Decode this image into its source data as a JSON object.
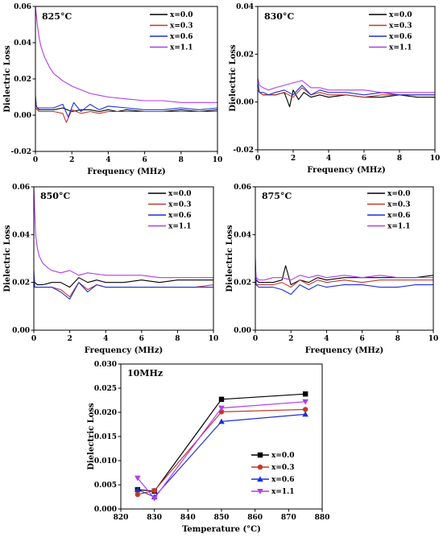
{
  "chart_data": [
    {
      "type": "line",
      "title": "825°C",
      "xlabel": "Frequency (MHz)",
      "ylabel": "Dielectric Loss",
      "xlim": [
        0,
        10
      ],
      "ylim": [
        -0.02,
        0.06
      ],
      "xticks": [
        "0",
        "2",
        "4",
        "6",
        "8",
        "10"
      ],
      "yticks": [
        "-0.02",
        "0.00",
        "0.02",
        "0.04",
        "0.06"
      ],
      "legend_position": "top-right",
      "series": [
        {
          "name": "x=0.0",
          "color": "#000000",
          "x": [
            0,
            0.1,
            0.2,
            0.5,
            1.0,
            1.5,
            2.0,
            2.5,
            3.0,
            3.5,
            4.0,
            4.5,
            5.0,
            6.0,
            7.0,
            8.0,
            9.0,
            10.0
          ],
          "values": [
            0.006,
            0.004,
            0.003,
            0.003,
            0.003,
            0.004,
            0.002,
            0.003,
            0.003,
            0.002,
            0.003,
            0.002,
            0.003,
            0.002,
            0.002,
            0.003,
            0.002,
            0.003
          ]
        },
        {
          "name": "x=0.3",
          "color": "#c0392b",
          "x": [
            0,
            0.1,
            0.2,
            0.5,
            1.0,
            1.5,
            1.7,
            2.0,
            2.5,
            3.0,
            3.5,
            4.0,
            5.0,
            6.0,
            7.0,
            8.0,
            9.0,
            10.0
          ],
          "values": [
            0.004,
            0.003,
            0.002,
            0.002,
            0.002,
            0.001,
            -0.004,
            0.003,
            0.001,
            0.002,
            0.001,
            0.002,
            0.002,
            0.002,
            0.002,
            0.002,
            0.002,
            0.002
          ]
        },
        {
          "name": "x=0.6",
          "color": "#1f2fd6",
          "x": [
            0,
            0.05,
            0.1,
            0.3,
            0.6,
            1.0,
            1.5,
            1.8,
            2.1,
            2.5,
            3.0,
            3.5,
            4.0,
            5.0,
            6.0,
            7.0,
            8.0,
            9.0,
            10.0
          ],
          "values": [
            0.011,
            0.005,
            0.004,
            0.004,
            0.004,
            0.004,
            0.006,
            -0.001,
            0.007,
            0.002,
            0.006,
            0.003,
            0.005,
            0.004,
            0.003,
            0.003,
            0.004,
            0.003,
            0.004
          ]
        },
        {
          "name": "x=1.1",
          "color": "#b23ce8",
          "x": [
            0,
            0.1,
            0.2,
            0.3,
            0.5,
            0.8,
            1.0,
            1.5,
            2.0,
            2.5,
            3.0,
            3.5,
            4.0,
            5.0,
            6.0,
            7.0,
            8.0,
            9.0,
            10.0
          ],
          "values": [
            0.06,
            0.05,
            0.043,
            0.038,
            0.032,
            0.026,
            0.023,
            0.019,
            0.016,
            0.014,
            0.012,
            0.011,
            0.01,
            0.009,
            0.008,
            0.008,
            0.007,
            0.007,
            0.007
          ]
        }
      ]
    },
    {
      "type": "line",
      "title": "830°C",
      "xlabel": "Frequency (MHz)",
      "ylabel": "Dielectric Loss",
      "xlim": [
        0,
        10
      ],
      "ylim": [
        -0.02,
        0.04
      ],
      "xticks": [
        "0",
        "2",
        "4",
        "6",
        "8",
        "10"
      ],
      "yticks": [
        "-0.02",
        "0.00",
        "0.02",
        "0.04"
      ],
      "legend_position": "top-right",
      "series": [
        {
          "name": "x=0.0",
          "color": "#000000",
          "x": [
            0,
            0.1,
            0.3,
            0.6,
            1.0,
            1.5,
            1.8,
            2.0,
            2.3,
            2.6,
            3.0,
            3.5,
            4.0,
            5.0,
            6.0,
            7.0,
            8.0,
            9.0,
            10.0
          ],
          "values": [
            0.005,
            0.004,
            0.003,
            0.003,
            0.003,
            0.004,
            -0.002,
            0.005,
            0.001,
            0.004,
            0.002,
            0.003,
            0.002,
            0.003,
            0.002,
            0.002,
            0.003,
            0.002,
            0.002
          ]
        },
        {
          "name": "x=0.3",
          "color": "#c0392b",
          "x": [
            0,
            0.1,
            0.3,
            0.6,
            1.0,
            1.5,
            2.0,
            2.5,
            3.0,
            3.5,
            4.0,
            5.0,
            6.0,
            7.0,
            8.0,
            9.0,
            10.0
          ],
          "values": [
            0.005,
            0.004,
            0.003,
            0.003,
            0.003,
            0.004,
            0.002,
            0.006,
            0.003,
            0.004,
            0.003,
            0.003,
            0.002,
            0.003,
            0.003,
            0.003,
            0.003
          ]
        },
        {
          "name": "x=0.6",
          "color": "#1f2fd6",
          "x": [
            0,
            0.1,
            0.3,
            0.6,
            1.0,
            1.5,
            2.0,
            2.5,
            3.0,
            3.5,
            4.0,
            5.0,
            6.0,
            7.0,
            8.0,
            9.0,
            10.0
          ],
          "values": [
            0.008,
            0.004,
            0.004,
            0.003,
            0.004,
            0.005,
            0.003,
            0.007,
            0.003,
            0.005,
            0.004,
            0.004,
            0.003,
            0.004,
            0.003,
            0.003,
            0.003
          ]
        },
        {
          "name": "x=1.1",
          "color": "#b23ce8",
          "x": [
            0,
            0.1,
            0.3,
            0.6,
            1.0,
            1.5,
            2.0,
            2.5,
            3.0,
            3.5,
            4.0,
            5.0,
            6.0,
            7.0,
            8.0,
            9.0,
            10.0
          ],
          "values": [
            0.01,
            0.007,
            0.006,
            0.005,
            0.006,
            0.007,
            0.008,
            0.009,
            0.006,
            0.006,
            0.005,
            0.005,
            0.005,
            0.004,
            0.004,
            0.004,
            0.004
          ]
        }
      ]
    },
    {
      "type": "line",
      "title": "850°C",
      "xlabel": "Frequency (MHz)",
      "ylabel": "Dielectric Loss",
      "xlim": [
        0,
        10
      ],
      "ylim": [
        0,
        0.06
      ],
      "xticks": [
        "0",
        "2",
        "4",
        "6",
        "8",
        "10"
      ],
      "yticks": [
        "0.00",
        "0.02",
        "0.04",
        "0.06"
      ],
      "legend_position": "top-right",
      "series": [
        {
          "name": "x=0.0",
          "color": "#000000",
          "x": [
            0,
            0.05,
            0.2,
            0.5,
            1.0,
            1.5,
            2.0,
            2.5,
            3.0,
            3.5,
            4.0,
            5.0,
            6.0,
            7.0,
            8.0,
            9.0,
            10.0
          ],
          "values": [
            0.022,
            0.02,
            0.019,
            0.019,
            0.02,
            0.02,
            0.018,
            0.022,
            0.02,
            0.021,
            0.02,
            0.02,
            0.021,
            0.02,
            0.021,
            0.021,
            0.021
          ]
        },
        {
          "name": "x=0.3",
          "color": "#c0392b",
          "x": [
            0,
            0.05,
            0.2,
            0.5,
            1.0,
            1.5,
            2.0,
            2.5,
            3.0,
            3.5,
            4.0,
            5.0,
            6.0,
            7.0,
            8.0,
            9.0,
            10.0
          ],
          "values": [
            0.021,
            0.018,
            0.018,
            0.018,
            0.018,
            0.017,
            0.014,
            0.02,
            0.017,
            0.019,
            0.018,
            0.018,
            0.018,
            0.018,
            0.018,
            0.018,
            0.019
          ]
        },
        {
          "name": "x=0.6",
          "color": "#1f2fd6",
          "x": [
            0,
            0.05,
            0.2,
            0.5,
            1.0,
            1.5,
            2.0,
            2.5,
            3.0,
            3.5,
            4.0,
            5.0,
            6.0,
            7.0,
            8.0,
            9.0,
            10.0
          ],
          "values": [
            0.025,
            0.018,
            0.018,
            0.018,
            0.018,
            0.016,
            0.013,
            0.02,
            0.016,
            0.019,
            0.018,
            0.018,
            0.018,
            0.018,
            0.018,
            0.018,
            0.018
          ]
        },
        {
          "name": "x=1.1",
          "color": "#b23ce8",
          "x": [
            0,
            0.1,
            0.2,
            0.3,
            0.5,
            0.8,
            1.0,
            1.5,
            2.0,
            2.5,
            3.0,
            4.0,
            5.0,
            6.0,
            7.0,
            8.0,
            9.0,
            10.0
          ],
          "values": [
            0.06,
            0.04,
            0.034,
            0.031,
            0.028,
            0.026,
            0.025,
            0.024,
            0.025,
            0.023,
            0.024,
            0.023,
            0.023,
            0.023,
            0.022,
            0.022,
            0.022,
            0.022
          ]
        }
      ]
    },
    {
      "type": "line",
      "title": "875°C",
      "xlabel": "Frequency (MHz)",
      "ylabel": "Dielectric Loss",
      "xlim": [
        0,
        10
      ],
      "ylim": [
        0,
        0.06
      ],
      "xticks": [
        "0",
        "2",
        "4",
        "6",
        "8",
        "10"
      ],
      "yticks": [
        "0.00",
        "0.02",
        "0.04",
        "0.06"
      ],
      "legend_position": "top-right",
      "series": [
        {
          "name": "x=0.0",
          "color": "#000000",
          "x": [
            0,
            0.05,
            0.2,
            0.5,
            1.0,
            1.5,
            1.7,
            2.0,
            2.5,
            3.0,
            3.5,
            4.0,
            5.0,
            6.0,
            7.0,
            8.0,
            9.0,
            10.0
          ],
          "values": [
            0.024,
            0.021,
            0.02,
            0.02,
            0.02,
            0.021,
            0.027,
            0.019,
            0.021,
            0.02,
            0.022,
            0.021,
            0.022,
            0.022,
            0.022,
            0.022,
            0.022,
            0.023
          ]
        },
        {
          "name": "x=0.3",
          "color": "#c0392b",
          "x": [
            0,
            0.05,
            0.2,
            0.5,
            1.0,
            1.5,
            2.0,
            2.5,
            3.0,
            3.5,
            4.0,
            5.0,
            6.0,
            7.0,
            8.0,
            9.0,
            10.0
          ],
          "values": [
            0.023,
            0.019,
            0.019,
            0.019,
            0.019,
            0.02,
            0.018,
            0.021,
            0.019,
            0.021,
            0.02,
            0.021,
            0.02,
            0.021,
            0.021,
            0.021,
            0.021
          ]
        },
        {
          "name": "x=0.6",
          "color": "#1f2fd6",
          "x": [
            0,
            0.05,
            0.2,
            0.5,
            1.0,
            1.5,
            2.0,
            2.5,
            3.0,
            3.5,
            4.0,
            5.0,
            6.0,
            7.0,
            8.0,
            9.0,
            10.0
          ],
          "values": [
            0.03,
            0.019,
            0.018,
            0.018,
            0.018,
            0.017,
            0.015,
            0.019,
            0.017,
            0.019,
            0.018,
            0.019,
            0.019,
            0.018,
            0.018,
            0.019,
            0.019
          ]
        },
        {
          "name": "x=1.1",
          "color": "#b23ce8",
          "x": [
            0,
            0.05,
            0.2,
            0.5,
            1.0,
            1.5,
            2.0,
            2.5,
            3.0,
            3.5,
            4.0,
            5.0,
            6.0,
            7.0,
            8.0,
            9.0,
            10.0
          ],
          "values": [
            0.026,
            0.022,
            0.021,
            0.021,
            0.022,
            0.022,
            0.021,
            0.023,
            0.022,
            0.023,
            0.022,
            0.023,
            0.022,
            0.023,
            0.022,
            0.022,
            0.022
          ]
        }
      ]
    },
    {
      "type": "line",
      "title": "10MHz",
      "xlabel": "Temperature (°C)",
      "ylabel": "Dielectric Loss",
      "xlim": [
        820,
        880
      ],
      "ylim": [
        0,
        0.03
      ],
      "xticks": [
        "820",
        "830",
        "840",
        "850",
        "860",
        "870",
        "880"
      ],
      "yticks": [
        "0.000",
        "0.005",
        "0.010",
        "0.015",
        "0.020",
        "0.025",
        "0.030"
      ],
      "legend_position": "bottom-right",
      "x": [
        825,
        830,
        850,
        875
      ],
      "series": [
        {
          "name": "x=0.0",
          "color": "#000000",
          "marker": "square",
          "values": [
            0.004,
            0.0037,
            0.0227,
            0.0238
          ]
        },
        {
          "name": "x=0.3",
          "color": "#c0392b",
          "marker": "circle",
          "values": [
            0.003,
            0.0038,
            0.0201,
            0.0206
          ]
        },
        {
          "name": "x=0.6",
          "color": "#1f2fd6",
          "marker": "triangle-up",
          "values": [
            0.004,
            0.0025,
            0.0181,
            0.0196
          ]
        },
        {
          "name": "x=1.1",
          "color": "#b23ce8",
          "marker": "triangle-down",
          "values": [
            0.0064,
            0.0022,
            0.0209,
            0.0222
          ]
        }
      ]
    }
  ]
}
